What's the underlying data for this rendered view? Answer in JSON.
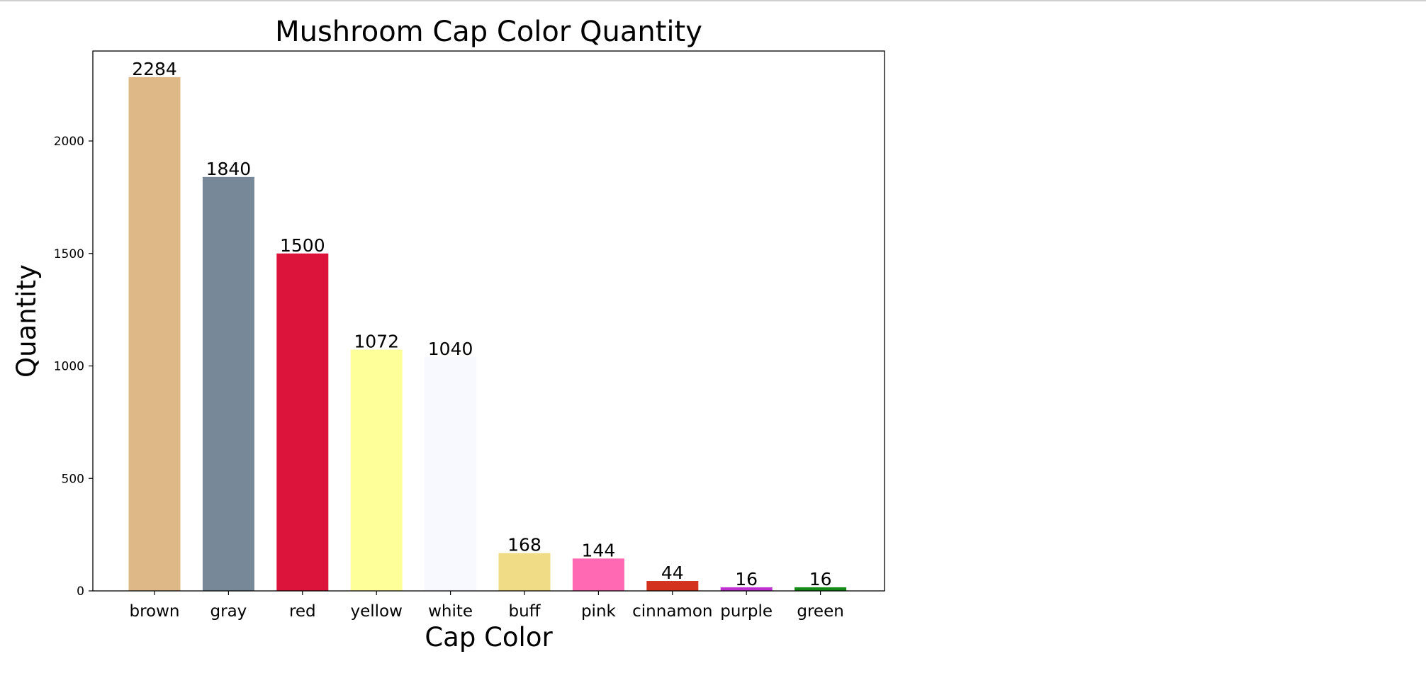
{
  "chart_data": {
    "type": "bar",
    "title": "Mushroom Cap Color Quantity",
    "xlabel": "Cap Color",
    "ylabel": "Quantity",
    "categories": [
      "brown",
      "gray",
      "red",
      "yellow",
      "white",
      "buff",
      "pink",
      "cinnamon",
      "purple",
      "green"
    ],
    "values": [
      2284,
      1840,
      1500,
      1072,
      1040,
      168,
      144,
      44,
      16,
      16
    ],
    "colors": [
      "#deb887",
      "#778899",
      "#dc143c",
      "#ffff99",
      "#f8f8ff",
      "#f0db86",
      "#ff69b4",
      "#d2321e",
      "#bf2fd2",
      "#138a13"
    ],
    "ylim": [
      0,
      2400
    ],
    "yticks": [
      0,
      500,
      1000,
      1500,
      2000
    ],
    "data_labels": true,
    "grid": false,
    "legend": "none"
  }
}
